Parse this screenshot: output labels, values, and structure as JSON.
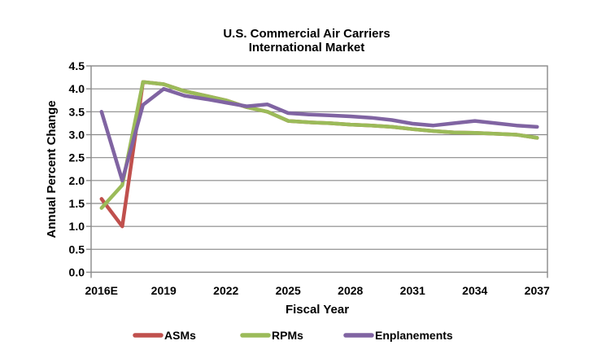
{
  "chart_data": {
    "type": "line",
    "title": "U.S. Commercial Air Carriers",
    "subtitle": "International Market",
    "xlabel": "Fiscal Year",
    "ylabel": "Annual Percent Change",
    "categories": [
      "2016E",
      "2017",
      "2018",
      "2019",
      "2020",
      "2021",
      "2022",
      "2023",
      "2024",
      "2025",
      "2026",
      "2027",
      "2028",
      "2029",
      "2030",
      "2031",
      "2032",
      "2033",
      "2034",
      "2035",
      "2036",
      "2037"
    ],
    "x_ticks": [
      {
        "index": 0,
        "label": "2016E"
      },
      {
        "index": 3,
        "label": "2019"
      },
      {
        "index": 6,
        "label": "2022"
      },
      {
        "index": 9,
        "label": "2025"
      },
      {
        "index": 12,
        "label": "2028"
      },
      {
        "index": 15,
        "label": "2031"
      },
      {
        "index": 18,
        "label": "2034"
      },
      {
        "index": 21,
        "label": "2037"
      }
    ],
    "ylim": [
      0,
      4.5
    ],
    "y_tick_step": 0.5,
    "y_tick_labels": [
      "0.0",
      "0.5",
      "1.0",
      "1.5",
      "2.0",
      "2.5",
      "3.0",
      "3.5",
      "4.0",
      "4.5"
    ],
    "grid": true,
    "legend_position": "bottom-center",
    "style": {
      "grid_color": "#898989",
      "text_color": "#000000",
      "background": "#FFFFFF",
      "line_width": 4.5
    },
    "series": [
      {
        "name": "ASMs",
        "color": "#C0504D",
        "values": [
          1.6,
          1.0,
          4.15,
          4.1,
          3.95,
          3.85,
          3.75,
          3.6,
          3.5,
          3.3,
          3.27,
          3.25,
          3.22,
          3.2,
          3.17,
          3.12,
          3.08,
          3.05,
          3.04,
          3.02,
          3.0,
          2.93
        ]
      },
      {
        "name": "RPMs",
        "color": "#9BBB59",
        "values": [
          1.4,
          1.9,
          4.15,
          4.1,
          3.95,
          3.85,
          3.75,
          3.6,
          3.5,
          3.3,
          3.27,
          3.25,
          3.22,
          3.2,
          3.17,
          3.12,
          3.08,
          3.05,
          3.04,
          3.02,
          3.0,
          2.93
        ]
      },
      {
        "name": "Enplanements",
        "color": "#8064A2",
        "values": [
          3.5,
          2.0,
          3.65,
          4.0,
          3.85,
          3.78,
          3.7,
          3.62,
          3.66,
          3.47,
          3.44,
          3.42,
          3.4,
          3.37,
          3.32,
          3.24,
          3.2,
          3.25,
          3.3,
          3.25,
          3.2,
          3.17
        ]
      }
    ]
  }
}
